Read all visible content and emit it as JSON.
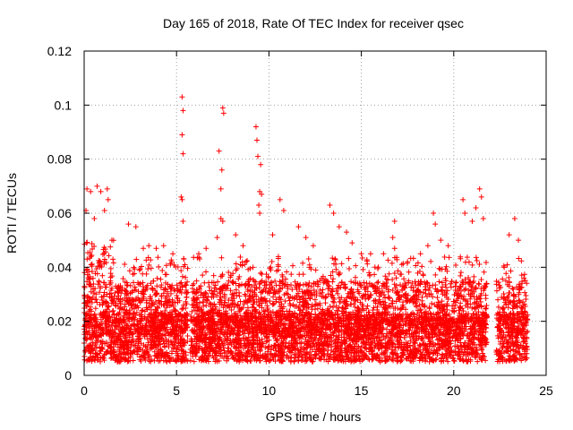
{
  "chart_data": {
    "type": "scatter",
    "title": "Day 165 of 2018, Rate Of TEC Index for receiver qsec",
    "xlabel": "GPS time / hours",
    "ylabel": "ROTI / TECUs",
    "xlim": [
      0,
      25
    ],
    "ylim": [
      0,
      0.12
    ],
    "xticks": [
      0,
      5,
      10,
      15,
      20,
      25
    ],
    "xtick_labels": [
      "0",
      "5",
      "10",
      "15",
      "20",
      "25"
    ],
    "yticks": [
      0,
      0.02,
      0.04,
      0.06,
      0.08,
      0.1,
      0.12
    ],
    "ytick_labels": [
      "0",
      "0.02",
      "0.04",
      "0.06",
      "0.08",
      "0.1",
      "0.12"
    ],
    "grid": true,
    "marker": "+",
    "color": "#ff0000",
    "data_gap_hours": [
      [
        5.6,
        5.75
      ],
      [
        21.8,
        22.3
      ]
    ],
    "series": [
      {
        "name": "ROTI",
        "points": [
          [
            0.1,
            0.061
          ],
          [
            0.15,
            0.069
          ],
          [
            0.35,
            0.068
          ],
          [
            0.55,
            0.058
          ],
          [
            0.7,
            0.07
          ],
          [
            0.9,
            0.068
          ],
          [
            1.1,
            0.061
          ],
          [
            1.25,
            0.069
          ],
          [
            1.3,
            0.065
          ],
          [
            1.5,
            0.05
          ],
          [
            2.4,
            0.056
          ],
          [
            2.8,
            0.055
          ],
          [
            3.2,
            0.047
          ],
          [
            3.5,
            0.048
          ],
          [
            3.9,
            0.047
          ],
          [
            4.3,
            0.048
          ],
          [
            4.8,
            0.045
          ],
          [
            5.3,
            0.103
          ],
          [
            5.35,
            0.098
          ],
          [
            5.3,
            0.089
          ],
          [
            5.35,
            0.082
          ],
          [
            5.25,
            0.066
          ],
          [
            5.3,
            0.065
          ],
          [
            5.35,
            0.057
          ],
          [
            6.2,
            0.045
          ],
          [
            6.6,
            0.047
          ],
          [
            7.3,
            0.083
          ],
          [
            7.5,
            0.099
          ],
          [
            7.55,
            0.097
          ],
          [
            7.45,
            0.076
          ],
          [
            7.4,
            0.069
          ],
          [
            7.4,
            0.058
          ],
          [
            7.5,
            0.057
          ],
          [
            7.2,
            0.051
          ],
          [
            8.2,
            0.052
          ],
          [
            8.6,
            0.048
          ],
          [
            9.3,
            0.092
          ],
          [
            9.35,
            0.087
          ],
          [
            9.4,
            0.081
          ],
          [
            9.55,
            0.078
          ],
          [
            9.5,
            0.068
          ],
          [
            9.6,
            0.067
          ],
          [
            9.45,
            0.063
          ],
          [
            9.5,
            0.06
          ],
          [
            10.2,
            0.052
          ],
          [
            10.6,
            0.065
          ],
          [
            10.8,
            0.061
          ],
          [
            11.6,
            0.055
          ],
          [
            12.0,
            0.051
          ],
          [
            12.4,
            0.048
          ],
          [
            13.3,
            0.063
          ],
          [
            13.5,
            0.06
          ],
          [
            13.8,
            0.055
          ],
          [
            14.2,
            0.053
          ],
          [
            14.5,
            0.049
          ],
          [
            15.0,
            0.045
          ],
          [
            15.5,
            0.045
          ],
          [
            16.2,
            0.045
          ],
          [
            16.8,
            0.057
          ],
          [
            16.7,
            0.051
          ],
          [
            16.8,
            0.047
          ],
          [
            17.5,
            0.042
          ],
          [
            18.2,
            0.045
          ],
          [
            18.6,
            0.048
          ],
          [
            18.9,
            0.06
          ],
          [
            19.0,
            0.056
          ],
          [
            19.3,
            0.05
          ],
          [
            19.7,
            0.048
          ],
          [
            20.5,
            0.065
          ],
          [
            20.6,
            0.06
          ],
          [
            21.0,
            0.057
          ],
          [
            21.2,
            0.062
          ],
          [
            21.4,
            0.069
          ],
          [
            21.5,
            0.066
          ],
          [
            21.6,
            0.058
          ],
          [
            23.0,
            0.052
          ],
          [
            23.3,
            0.058
          ],
          [
            23.5,
            0.05
          ],
          [
            23.8,
            0.036
          ]
        ]
      }
    ]
  }
}
